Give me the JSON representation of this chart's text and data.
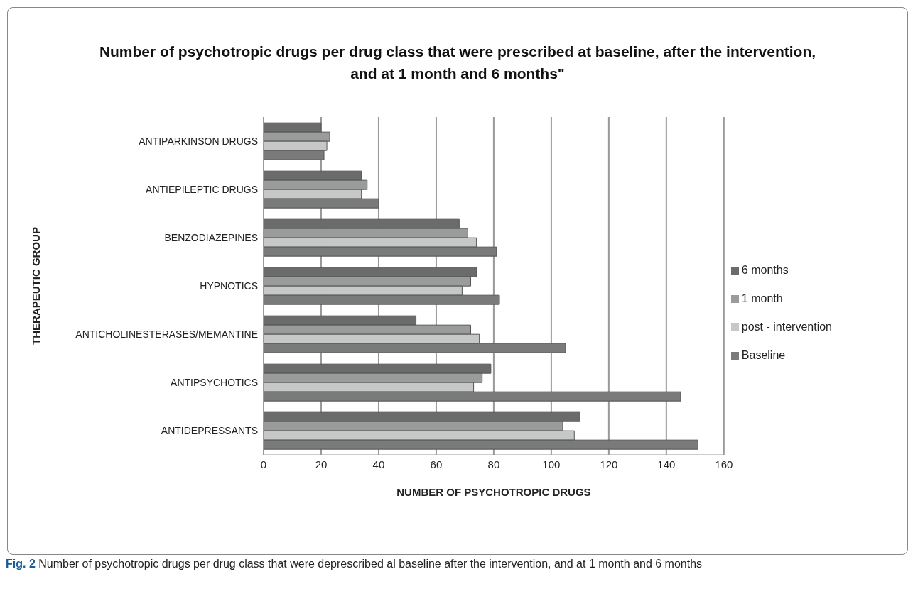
{
  "chart_data": {
    "type": "bar",
    "orientation": "horizontal",
    "title": "Number of psychotropic drugs per drug class that were prescribed at baseline, after the intervention, and at 1 month and 6 months\"",
    "xlabel": "NUMBER OF PSYCHOTROPIC DRUGS",
    "ylabel": "THERAPEUTIC GROUP",
    "categories": [
      "ANTIPARKINSON DRUGS",
      "ANTIEPILEPTIC DRUGS",
      "BENZODIAZEPINES",
      "HYPNOTICS",
      "ANTICHOLINESTERASES/MEMANTINE",
      "ANTIPSYCHOTICS",
      "ANTIDEPRESSANTS"
    ],
    "series": [
      {
        "name": "6 months",
        "color": "#6b6b6b",
        "values": [
          20,
          34,
          68,
          74,
          53,
          79,
          110
        ]
      },
      {
        "name": "1 month",
        "color": "#9a9c9b",
        "values": [
          23,
          36,
          71,
          72,
          72,
          76,
          104
        ]
      },
      {
        "name": "post - intervention",
        "color": "#c6c8c7",
        "values": [
          22,
          34,
          74,
          69,
          75,
          73,
          108
        ]
      },
      {
        "name": "Baseline",
        "color": "#7a7a7a",
        "values": [
          21,
          40,
          81,
          82,
          105,
          145,
          151
        ]
      }
    ],
    "xlim": [
      0,
      160
    ],
    "xticks": [
      0,
      20,
      40,
      60,
      80,
      100,
      120,
      140,
      160
    ],
    "grid": "x",
    "legend": "right",
    "annotations": [
      "Fig. 2 Number of psychotropic drugs per drug class that were deprescribed al baseline after the intervention, and at 1 month and 6 months"
    ]
  }
}
